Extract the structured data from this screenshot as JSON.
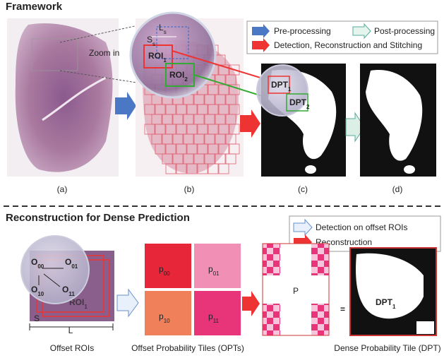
{
  "framework": {
    "title": "Framework",
    "zoom_label": "Zoom in",
    "l_label": {
      "text": "L",
      "sub": "s"
    },
    "s_label": {
      "text": "S",
      "sub": "s"
    },
    "roi_1": {
      "text": "ROI",
      "sub": "1"
    },
    "roi_2": {
      "text": "ROI",
      "sub": "2"
    },
    "dpt_1": {
      "text": "DPT",
      "sub": "1"
    },
    "dpt_2": {
      "text": "DPT",
      "sub": "2"
    },
    "legend": [
      "Pre-processing",
      "Post-processing",
      "Detection, Reconstruction and Stitching"
    ],
    "captions": [
      "(a)",
      "(b)",
      "(c)",
      "(d)"
    ]
  },
  "reconstruction": {
    "title": "Reconstruction for Dense Prediction",
    "legend": [
      "Detection on offset ROIs",
      "Reconstruction"
    ],
    "offsets": [
      {
        "text": "O",
        "sub": "00"
      },
      {
        "text": "O",
        "sub": "01"
      },
      {
        "text": "O",
        "sub": "10"
      },
      {
        "text": "O",
        "sub": "11"
      }
    ],
    "roi": {
      "text": "ROI",
      "sub": "1"
    },
    "l_label": "L",
    "s_label": "S",
    "tiles": [
      {
        "text": "p",
        "sub": "00"
      },
      {
        "text": "p",
        "sub": "01"
      },
      {
        "text": "p",
        "sub": "10"
      },
      {
        "text": "p",
        "sub": "11"
      }
    ],
    "p_label": "P",
    "equals": "=",
    "dpt": {
      "text": "DPT",
      "sub": "1"
    },
    "captions": [
      "Offset ROIs",
      "Offset Probability Tiles (OPTs)",
      "Dense Probability Tile (DPT)"
    ]
  }
}
